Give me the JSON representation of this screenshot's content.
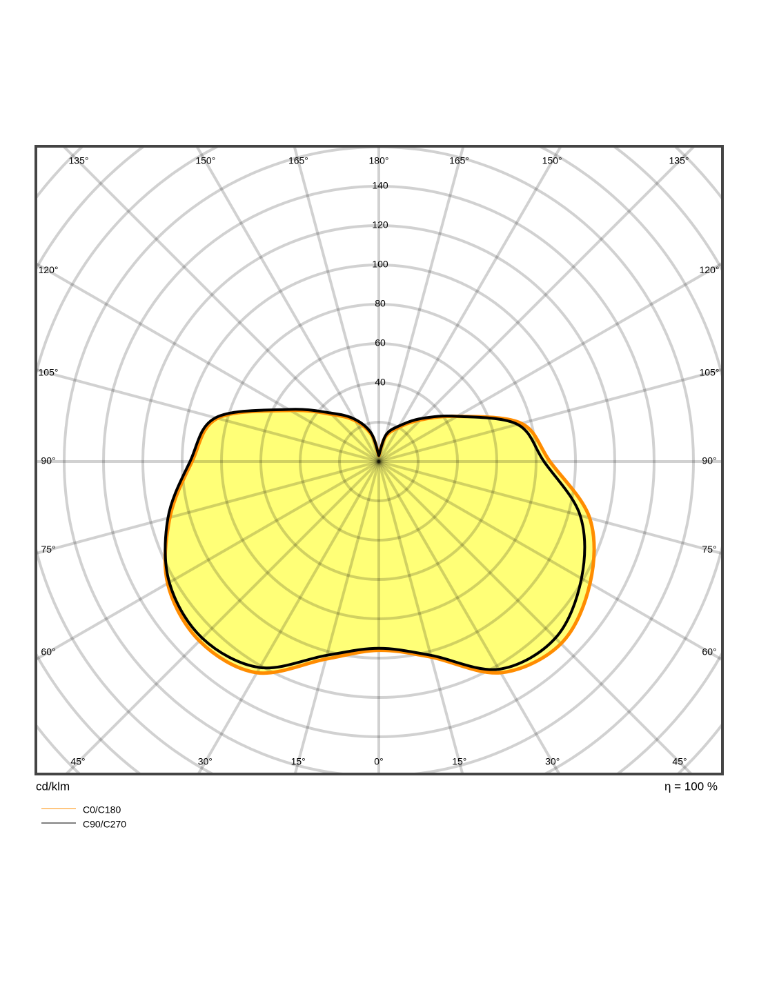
{
  "chart_data": {
    "type": "polar",
    "unit_label": "cd/klm",
    "efficiency_label": "η = 100 %",
    "theta": [
      -180,
      -165,
      -150,
      -135,
      -120,
      -105,
      -90,
      -75,
      -60,
      -45,
      -30,
      -15,
      0,
      15,
      30,
      45,
      60,
      75,
      90,
      105,
      120,
      135,
      150,
      165,
      180
    ],
    "series": [
      {
        "name": "C0/C180",
        "color": "#ff8c00",
        "values": [
          3,
          14,
          24,
          34,
          52,
          85,
          95,
          110,
          124,
          129,
          124,
          104,
          96,
          103,
          124,
          131,
          124,
          111,
          87,
          75,
          46,
          30,
          20,
          13,
          3
        ]
      },
      {
        "name": "C90/C270",
        "color": "#000000",
        "values": [
          3,
          15,
          25,
          35,
          53,
          86,
          96,
          111,
          123,
          127,
          121,
          102,
          95,
          102,
          122,
          127,
          119,
          106,
          84,
          73,
          46,
          31,
          21,
          14,
          3
        ]
      }
    ],
    "rlim": [
      0,
      140
    ],
    "rticks": [
      {
        "value": 20,
        "label": null
      },
      40,
      60,
      80,
      100,
      120,
      140,
      {
        "value": 160,
        "label": null
      },
      {
        "value": 180,
        "label": null
      },
      {
        "value": 200,
        "label": null
      },
      {
        "value": 220,
        "label": null
      },
      {
        "value": 240,
        "label": null
      }
    ],
    "angle_ticks": [
      {
        "value": -135,
        "label": "135°"
      },
      {
        "value": -150,
        "label": "150°"
      },
      {
        "value": -165,
        "label": "165°"
      },
      {
        "value": 180,
        "label": "180°"
      },
      {
        "value": 165,
        "label": "165°"
      },
      {
        "value": 150,
        "label": "150°"
      },
      {
        "value": 135,
        "label": "135°"
      },
      {
        "value": -120,
        "label": "120°"
      },
      {
        "value": -105,
        "label": "105°"
      },
      {
        "value": -90,
        "label": "90°"
      },
      {
        "value": -75,
        "label": "75°"
      },
      {
        "value": -60,
        "label": "60°"
      },
      {
        "value": 120,
        "label": "120°"
      },
      {
        "value": 105,
        "label": "105°"
      },
      {
        "value": 90,
        "label": "90°"
      },
      {
        "value": 75,
        "label": "75°"
      },
      {
        "value": 60,
        "label": "60°"
      },
      {
        "value": -45,
        "label": "45°"
      },
      {
        "value": -30,
        "label": "30°"
      },
      {
        "value": -15,
        "label": "15°"
      },
      {
        "value": 0,
        "label": "0°"
      },
      {
        "value": 15,
        "label": "15°"
      },
      {
        "value": 30,
        "label": "30°"
      },
      {
        "value": 45,
        "label": "45°"
      }
    ]
  }
}
